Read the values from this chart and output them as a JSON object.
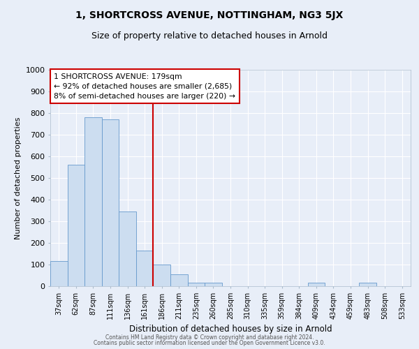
{
  "title": "1, SHORTCROSS AVENUE, NOTTINGHAM, NG3 5JX",
  "subtitle": "Size of property relative to detached houses in Arnold",
  "xlabel": "Distribution of detached houses by size in Arnold",
  "ylabel": "Number of detached properties",
  "bar_labels": [
    "37sqm",
    "62sqm",
    "87sqm",
    "111sqm",
    "136sqm",
    "161sqm",
    "186sqm",
    "211sqm",
    "235sqm",
    "260sqm",
    "285sqm",
    "310sqm",
    "335sqm",
    "359sqm",
    "384sqm",
    "409sqm",
    "434sqm",
    "459sqm",
    "483sqm",
    "508sqm",
    "533sqm"
  ],
  "bar_heights": [
    115,
    560,
    780,
    770,
    345,
    165,
    100,
    55,
    15,
    15,
    0,
    0,
    0,
    0,
    0,
    15,
    0,
    0,
    15,
    0,
    0
  ],
  "bar_color": "#ccddf0",
  "bar_edge_color": "#6699cc",
  "vline_x_index": 5.5,
  "vline_color": "#cc0000",
  "annotation_title": "1 SHORTCROSS AVENUE: 179sqm",
  "annotation_line1": "← 92% of detached houses are smaller (2,685)",
  "annotation_line2": "8% of semi-detached houses are larger (220) →",
  "annotation_box_color": "white",
  "annotation_box_edge": "#cc0000",
  "ylim": [
    0,
    1000
  ],
  "yticks": [
    0,
    100,
    200,
    300,
    400,
    500,
    600,
    700,
    800,
    900,
    1000
  ],
  "footer1": "Contains HM Land Registry data © Crown copyright and database right 2024.",
  "footer2": "Contains public sector information licensed under the Open Government Licence v3.0.",
  "bg_color": "#e8eef8",
  "grid_color": "#ffffff"
}
